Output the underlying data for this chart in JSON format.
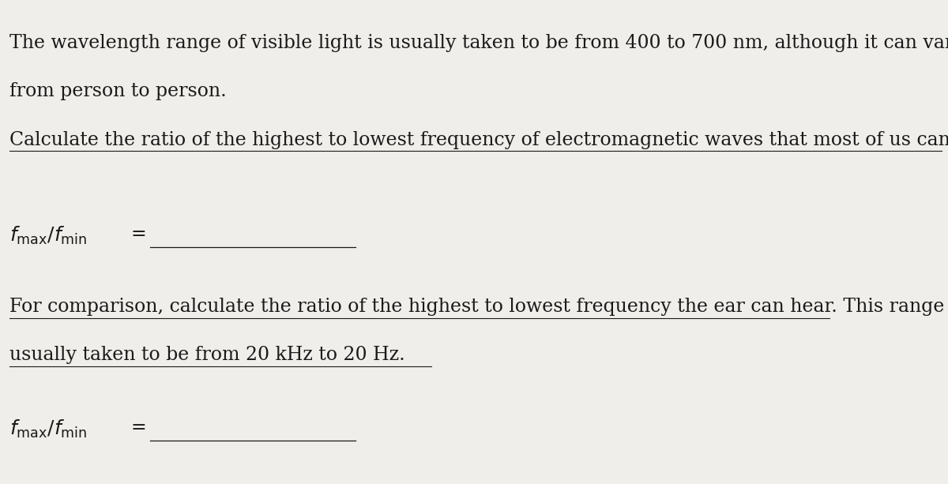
{
  "background_color": "#f0eeea",
  "text_color": "#1a1a1a",
  "paragraph1_line1": "The wavelength range of visible light is usually taken to be from 400 to 700 nm, although it can vary",
  "paragraph1_line2": "from person to person.",
  "paragraph2": "Calculate the ratio of the highest to lowest frequency of electromagnetic waves that most of us can see.",
  "paragraph3_line1": "For comparison, calculate the ratio of the highest to lowest frequency the ear can hear. This range is",
  "paragraph3_line2": "usually taken to be from 20 kHz to 20 Hz.",
  "font_size_body": 17,
  "font_size_label": 18,
  "underline_color": "#1a1a1a",
  "line_color": "#1a1a1a",
  "line_lw": 0.9,
  "underline_lw": 0.8
}
